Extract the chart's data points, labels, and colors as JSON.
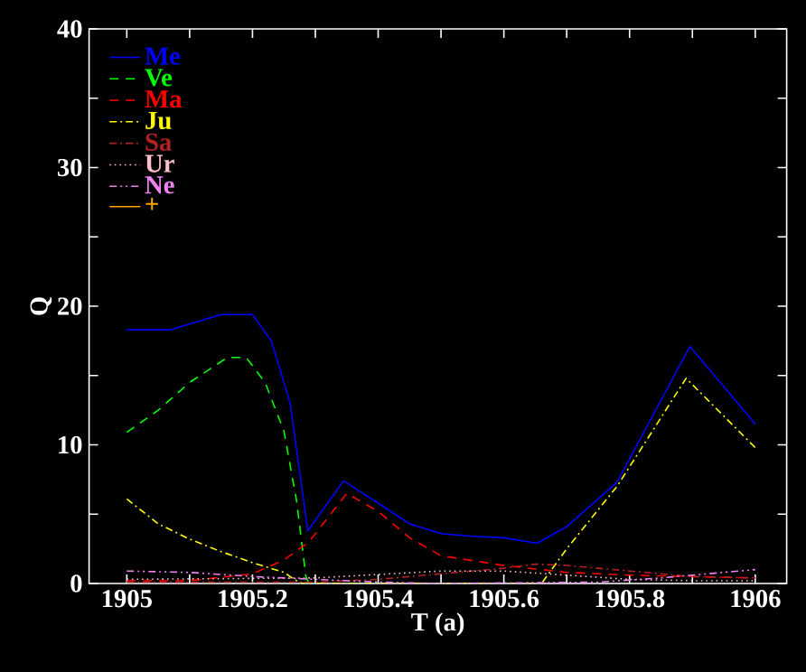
{
  "chart_data": {
    "type": "line",
    "xlabel": "T (a)",
    "ylabel": "Q",
    "xlim": [
      1904.94,
      1906.05
    ],
    "ylim": [
      0,
      40
    ],
    "xticks": [
      1905,
      {
        "value": 1905.1,
        "label": null
      },
      1905.2,
      {
        "value": 1905.3,
        "label": null
      },
      1905.4,
      {
        "value": 1905.5,
        "label": null
      },
      1905.6,
      {
        "value": 1905.7,
        "label": null
      },
      1905.8,
      {
        "value": 1905.9,
        "label": null
      },
      1906
    ],
    "yticks": [
      0,
      {
        "value": 5,
        "label": null
      },
      10,
      {
        "value": 15,
        "label": null
      },
      20,
      {
        "value": 25,
        "label": null
      },
      30,
      {
        "value": 35,
        "label": null
      },
      40
    ],
    "legend": "top left",
    "grid": false,
    "series": [
      {
        "name": "Me",
        "color": "#0000ff",
        "line_style": "solid",
        "x": [
          1905,
          1905.07,
          1905.15,
          1905.2,
          1905.23,
          1905.26,
          1905.288,
          1905.345,
          1905.4,
          1905.45,
          1905.5,
          1905.55,
          1905.6,
          1905.653,
          1905.7,
          1905.78,
          1905.896,
          1906
        ],
        "values": [
          18.3,
          18.3,
          19.4,
          19.4,
          17.5,
          13,
          3.8,
          7.4,
          5.8,
          4.3,
          3.6,
          3.4,
          3.3,
          2.9,
          4.1,
          7.3,
          17.1,
          11.5
        ]
      },
      {
        "name": "Ve",
        "color": "#00ff00",
        "line_style": "dashed",
        "x": [
          1905,
          1905.05,
          1905.1,
          1905.16,
          1905.19,
          1905.22,
          1905.25,
          1905.27,
          1905.285,
          1905.29
        ],
        "values": [
          10.9,
          12.5,
          14.5,
          16.3,
          16.3,
          14.5,
          11,
          6,
          0.5,
          0
        ]
      },
      {
        "name": "Ma",
        "color": "#ff0000",
        "line_style": "dashed",
        "x": [
          1905,
          1905.1,
          1905.2,
          1905.25,
          1905.29,
          1905.35,
          1905.4,
          1905.45,
          1905.5,
          1905.6,
          1905.7,
          1905.8,
          1905.9,
          1906
        ],
        "values": [
          0.2,
          0.2,
          0.7,
          1.7,
          3.0,
          6.5,
          5.2,
          3.3,
          2.0,
          1.3,
          0.8,
          0.6,
          0.5,
          0.4
        ]
      },
      {
        "name": "Ju",
        "color": "#ffff00",
        "line_style": "dashdot",
        "x": [
          1905,
          1905.05,
          1905.1,
          1905.15,
          1905.2,
          1905.25,
          1905.27,
          1905.28,
          1905.66,
          1905.7,
          1905.78,
          1905.89,
          1906
        ],
        "values": [
          6.1,
          4.3,
          3.2,
          2.3,
          1.5,
          0.8,
          0.2,
          0,
          0,
          2.5,
          7.0,
          14.8,
          9.8
        ]
      },
      {
        "name": "Sa",
        "color": "#b22222",
        "line_style": "dashdot",
        "x": [
          1905,
          1905.3,
          1905.4,
          1905.5,
          1905.6,
          1905.65,
          1905.7,
          1905.8,
          1905.9,
          1906
        ],
        "values": [
          0.1,
          0.1,
          0.3,
          0.7,
          1.1,
          1.4,
          1.3,
          0.9,
          0.5,
          0.4
        ]
      },
      {
        "name": "Ur",
        "color": "#ffc0cb",
        "line_style": "dotted",
        "x": [
          1905,
          1905.3,
          1905.5,
          1905.6,
          1905.7,
          1905.8,
          1905.9,
          1906
        ],
        "values": [
          0.3,
          0.4,
          0.9,
          0.9,
          0.6,
          0.3,
          0.2,
          0.2
        ]
      },
      {
        "name": "Ne",
        "color": "#ee82ee",
        "line_style": "dashdotdot",
        "x": [
          1905,
          1905.1,
          1905.2,
          1905.3,
          1905.4,
          1905.5,
          1905.75,
          1905.85,
          1905.9,
          1906
        ],
        "values": [
          0.9,
          0.8,
          0.5,
          0.3,
          0.1,
          0.0,
          0.1,
          0.4,
          0.6,
          1.0
        ]
      },
      {
        "name": "+",
        "color": "#ffa500",
        "line_style": "solid"
      }
    ]
  }
}
